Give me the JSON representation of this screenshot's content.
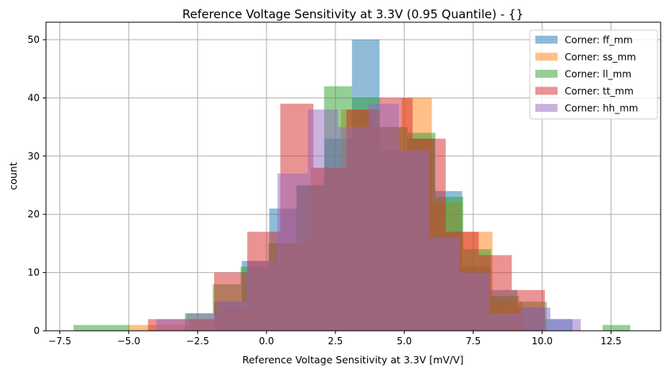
{
  "chart_data": {
    "type": "histogram",
    "title": "Reference Voltage Sensitivity at 3.3V (0.95 Quantile) - {}",
    "xlabel": "Reference Voltage Sensitivity at 3.3V [mV/V]",
    "ylabel": "count",
    "xlim": [
      -8.0,
      14.3
    ],
    "ylim": [
      0,
      53
    ],
    "xticks": [
      -7.5,
      -5.0,
      -2.5,
      0.0,
      2.5,
      5.0,
      7.5,
      10.0,
      12.5
    ],
    "xtick_labels": [
      "−7.5",
      "−5.0",
      "−2.5",
      "0.0",
      "2.5",
      "5.0",
      "7.5",
      "10.0",
      "12.5"
    ],
    "yticks": [
      0,
      10,
      20,
      30,
      40,
      50
    ],
    "ytick_labels": [
      "0",
      "10",
      "20",
      "30",
      "40",
      "50"
    ],
    "grid": true,
    "legend_position": "top-right",
    "opacity": 0.5,
    "series": [
      {
        "name": "Corner: ff_mm",
        "color": "#1f77b4",
        "bin_start": -1.9,
        "bin_width": 1.0,
        "counts": [
          5,
          12,
          21,
          25,
          33,
          50,
          31,
          33,
          24,
          11,
          7,
          4,
          2
        ]
      },
      {
        "name": "Corner: ss_mm",
        "color": "#ff7f0e",
        "bin_start": -5.0,
        "bin_width": 1.1,
        "counts": [
          1,
          1,
          2,
          4,
          12,
          15,
          28,
          38,
          35,
          40,
          22,
          17,
          5
        ]
      },
      {
        "name": "Corner: ll_mm",
        "color": "#2ca02c",
        "bin_start": -7.0,
        "bin_width": 1.01,
        "counts": [
          1,
          1,
          0,
          0,
          3,
          8,
          11,
          15,
          25,
          42,
          40,
          35,
          34,
          23,
          14,
          6,
          5,
          0,
          0,
          1
        ]
      },
      {
        "name": "Corner: tt_mm",
        "color": "#d62728",
        "bin_start": -4.3,
        "bin_width": 1.2,
        "counts": [
          2,
          2,
          10,
          17,
          39,
          28,
          38,
          40,
          33,
          17,
          13,
          7
        ]
      },
      {
        "name": "Corner: hh_mm",
        "color": "#9467bd",
        "bin_start": -4.0,
        "bin_width": 1.1,
        "counts": [
          2,
          3,
          5,
          12,
          27,
          38,
          35,
          39,
          31,
          16,
          10,
          3,
          4,
          2
        ]
      }
    ]
  }
}
